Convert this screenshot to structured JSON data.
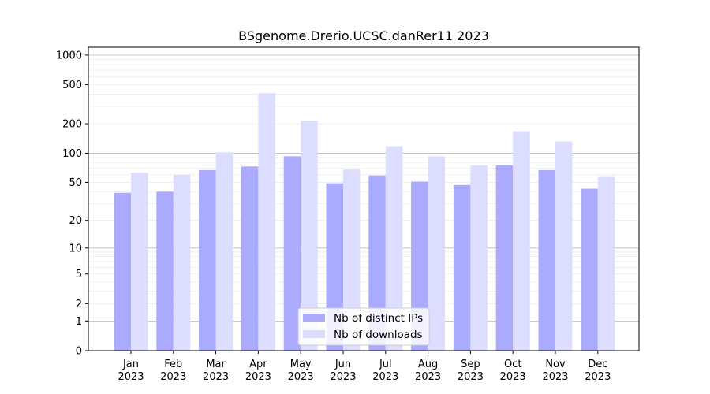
{
  "chart_data": {
    "type": "bar",
    "title": "BSgenome.Drerio.UCSC.danRer11 2023",
    "xlabel": "",
    "ylabel": "",
    "categories": [
      [
        "Jan",
        "2023"
      ],
      [
        "Feb",
        "2023"
      ],
      [
        "Mar",
        "2023"
      ],
      [
        "Apr",
        "2023"
      ],
      [
        "May",
        "2023"
      ],
      [
        "Jun",
        "2023"
      ],
      [
        "Jul",
        "2023"
      ],
      [
        "Aug",
        "2023"
      ],
      [
        "Sep",
        "2023"
      ],
      [
        "Oct",
        "2023"
      ],
      [
        "Nov",
        "2023"
      ],
      [
        "Dec",
        "2023"
      ]
    ],
    "series": [
      {
        "name": "Nb of distinct IPs",
        "color": "#aaaaff",
        "values": [
          39,
          40,
          67,
          73,
          93,
          49,
          59,
          51,
          47,
          75,
          67,
          43
        ]
      },
      {
        "name": "Nb of downloads",
        "color": "#ddddff",
        "values": [
          63,
          60,
          102,
          410,
          215,
          68,
          118,
          93,
          75,
          168,
          132,
          58
        ]
      }
    ],
    "y_scale": "log(1+y)",
    "ylim": [
      0,
      1200
    ],
    "yticks": [
      0,
      1,
      2,
      5,
      10,
      20,
      50,
      100,
      200,
      500,
      1000
    ],
    "grid": true,
    "legend_position": "bottom-center"
  }
}
